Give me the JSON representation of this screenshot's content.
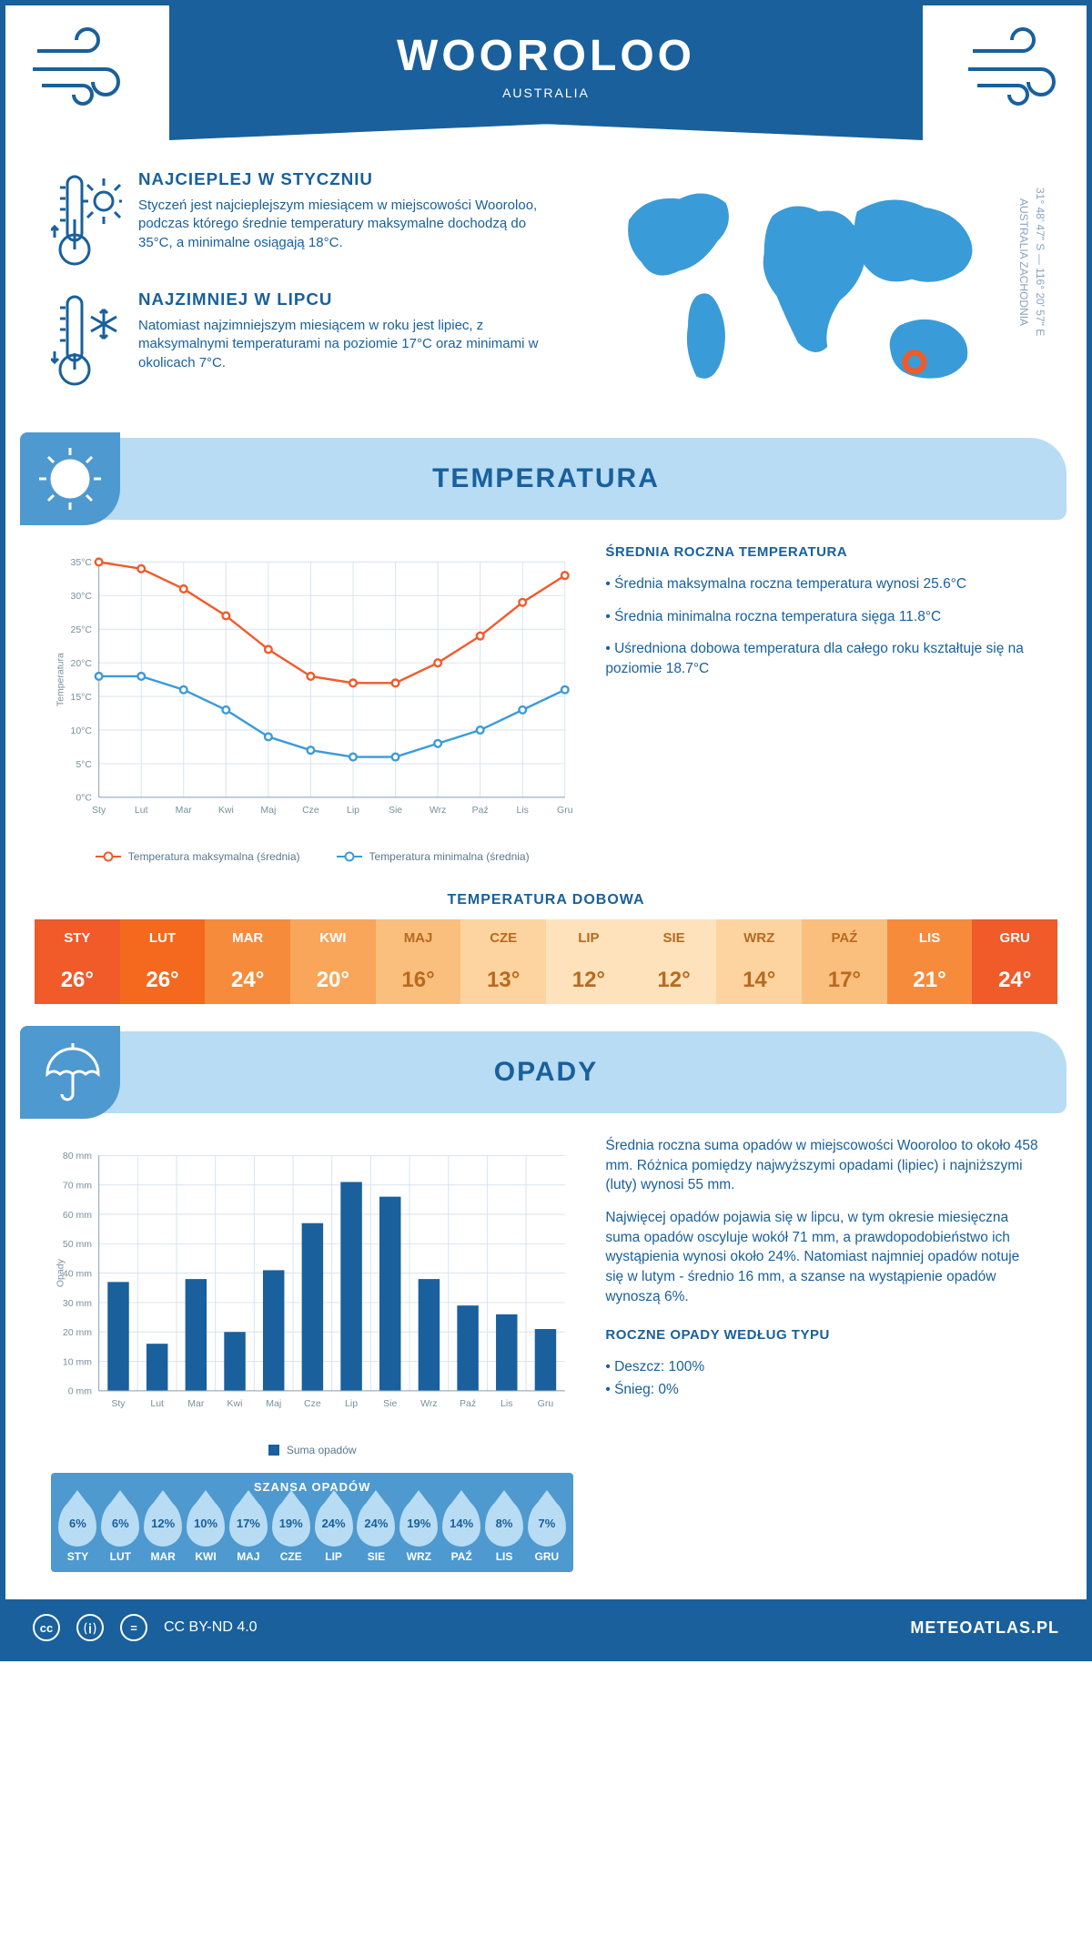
{
  "header": {
    "title": "WOOROLOO",
    "subtitle": "AUSTRALIA"
  },
  "coords": {
    "line1": "31° 48' 47\" S — 116° 20' 57\" E",
    "line2": "AUSTRALIA ZACHODNIA"
  },
  "facts": {
    "hot": {
      "title": "NAJCIEPLEJ W STYCZNIU",
      "text": "Styczeń jest najcieplejszym miesiącem w miejscowości Wooroloo, podczas którego średnie temperatury maksymalne dochodzą do 35°C, a minimalne osiągają 18°C."
    },
    "cold": {
      "title": "NAJZIMNIEJ W LIPCU",
      "text": "Natomiast najzimniejszym miesiącem w roku jest lipiec, z maksymalnymi temperaturami na poziomie 17°C oraz minimami w okolicach 7°C."
    }
  },
  "sections": {
    "temp": "TEMPERATURA",
    "precip": "OPADY"
  },
  "temp_chart": {
    "type": "line",
    "months": [
      "Sty",
      "Lut",
      "Mar",
      "Kwi",
      "Maj",
      "Cze",
      "Lip",
      "Sie",
      "Wrz",
      "Paź",
      "Lis",
      "Gru"
    ],
    "max_series": [
      35,
      34,
      31,
      27,
      22,
      18,
      17,
      17,
      20,
      24,
      29,
      33
    ],
    "min_series": [
      18,
      18,
      16,
      13,
      9,
      7,
      6,
      6,
      8,
      10,
      13,
      16
    ],
    "max_color": "#f15a29",
    "min_color": "#3a9bd9",
    "grid_color": "#d7e3ee",
    "axis_color": "#8aa3b6",
    "ylim": [
      0,
      35
    ],
    "ytick_step": 5,
    "y_title": "Temperatura",
    "y_suffix": "°C",
    "legend_max": "Temperatura maksymalna (średnia)",
    "legend_min": "Temperatura minimalna (średnia)"
  },
  "temp_stats": {
    "title": "ŚREDNIA ROCZNA TEMPERATURA",
    "b1": "• Średnia maksymalna roczna temperatura wynosi 25.6°C",
    "b2": "• Średnia minimalna roczna temperatura sięga 11.8°C",
    "b3": "• Uśredniona dobowa temperatura dla całego roku kształtuje się na poziomie 18.7°C"
  },
  "daily_temp": {
    "title": "TEMPERATURA DOBOWA",
    "months": [
      "STY",
      "LUT",
      "MAR",
      "KWI",
      "MAJ",
      "CZE",
      "LIP",
      "SIE",
      "WRZ",
      "PAŹ",
      "LIS",
      "GRU"
    ],
    "values": [
      "26°",
      "26°",
      "24°",
      "20°",
      "16°",
      "13°",
      "12°",
      "12°",
      "14°",
      "17°",
      "21°",
      "24°"
    ],
    "head_colors": [
      "#f15a29",
      "#f4691e",
      "#f68b3b",
      "#f9a65a",
      "#fbbf7d",
      "#fdd4a0",
      "#fee2bb",
      "#fee2bb",
      "#fdd4a0",
      "#fbbf7d",
      "#f68b3b",
      "#f15a29"
    ],
    "val_colors": [
      "#f15a29",
      "#f4691e",
      "#f68b3b",
      "#f9a65a",
      "#fbbf7d",
      "#fdd4a0",
      "#fee2bb",
      "#fee2bb",
      "#fdd4a0",
      "#fbbf7d",
      "#f68b3b",
      "#f15a29"
    ],
    "text_light": "#ffffff",
    "text_dark": "#b86a1e"
  },
  "precip_chart": {
    "type": "bar",
    "months": [
      "Sty",
      "Lut",
      "Mar",
      "Kwi",
      "Maj",
      "Cze",
      "Lip",
      "Sie",
      "Wrz",
      "Paź",
      "Lis",
      "Gru"
    ],
    "values": [
      37,
      16,
      38,
      20,
      41,
      57,
      71,
      66,
      38,
      29,
      26,
      21
    ],
    "bar_color": "#19609c",
    "grid_color": "#d7e3ee",
    "axis_color": "#8aa3b6",
    "ylim": [
      0,
      80
    ],
    "ytick_step": 10,
    "y_title": "Opady",
    "y_suffix": " mm",
    "legend": "Suma opadów"
  },
  "precip_text": {
    "p1": "Średnia roczna suma opadów w miejscowości Wooroloo to około 458 mm. Różnica pomiędzy najwyższymi opadami (lipiec) i najniższymi (luty) wynosi 55 mm.",
    "p2": "Najwięcej opadów pojawia się w lipcu, w tym okresie miesięczna suma opadów oscyluje wokół 71 mm, a prawdopodobieństwo ich wystąpienia wynosi około 24%. Natomiast najmniej opadów notuje się w lutym - średnio 16 mm, a szanse na wystąpienie opadów wynoszą 6%.",
    "types_title": "ROCZNE OPADY WEDŁUG TYPU",
    "t1": "• Deszcz: 100%",
    "t2": "• Śnieg: 0%"
  },
  "precip_chance": {
    "title": "SZANSA OPADÓW",
    "months": [
      "STY",
      "LUT",
      "MAR",
      "KWI",
      "MAJ",
      "CZE",
      "LIP",
      "SIE",
      "WRZ",
      "PAŹ",
      "LIS",
      "GRU"
    ],
    "values": [
      "6%",
      "6%",
      "12%",
      "10%",
      "17%",
      "19%",
      "24%",
      "24%",
      "19%",
      "14%",
      "8%",
      "7%"
    ]
  },
  "footer": {
    "license": "CC BY-ND 4.0",
    "brand": "METEOATLAS.PL"
  }
}
